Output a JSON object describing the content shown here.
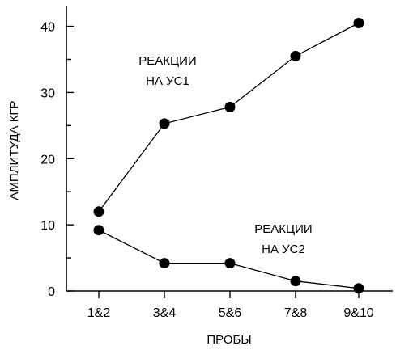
{
  "chart_data": {
    "type": "line",
    "categories": [
      "1&2",
      "3&4",
      "5&6",
      "7&8",
      "9&10"
    ],
    "series": [
      {
        "values": [
          12,
          25.3,
          27.8,
          35.5,
          40.5
        ]
      },
      {
        "values": [
          9.2,
          4.2,
          4.2,
          1.5,
          0.4
        ]
      }
    ],
    "xlabel": "ПРОБЫ",
    "ylabel": "АМПЛИТУДА КГР",
    "ylim": [
      0,
      43
    ],
    "yticks": [
      0,
      10,
      20,
      30,
      40
    ],
    "annotations": [
      {
        "lines": [
          "РЕАКЦИИ",
          "НА УС1"
        ]
      },
      {
        "lines": [
          "РЕАКЦИИ",
          "НА УС2"
        ]
      }
    ],
    "grid": false,
    "legend": "none"
  }
}
